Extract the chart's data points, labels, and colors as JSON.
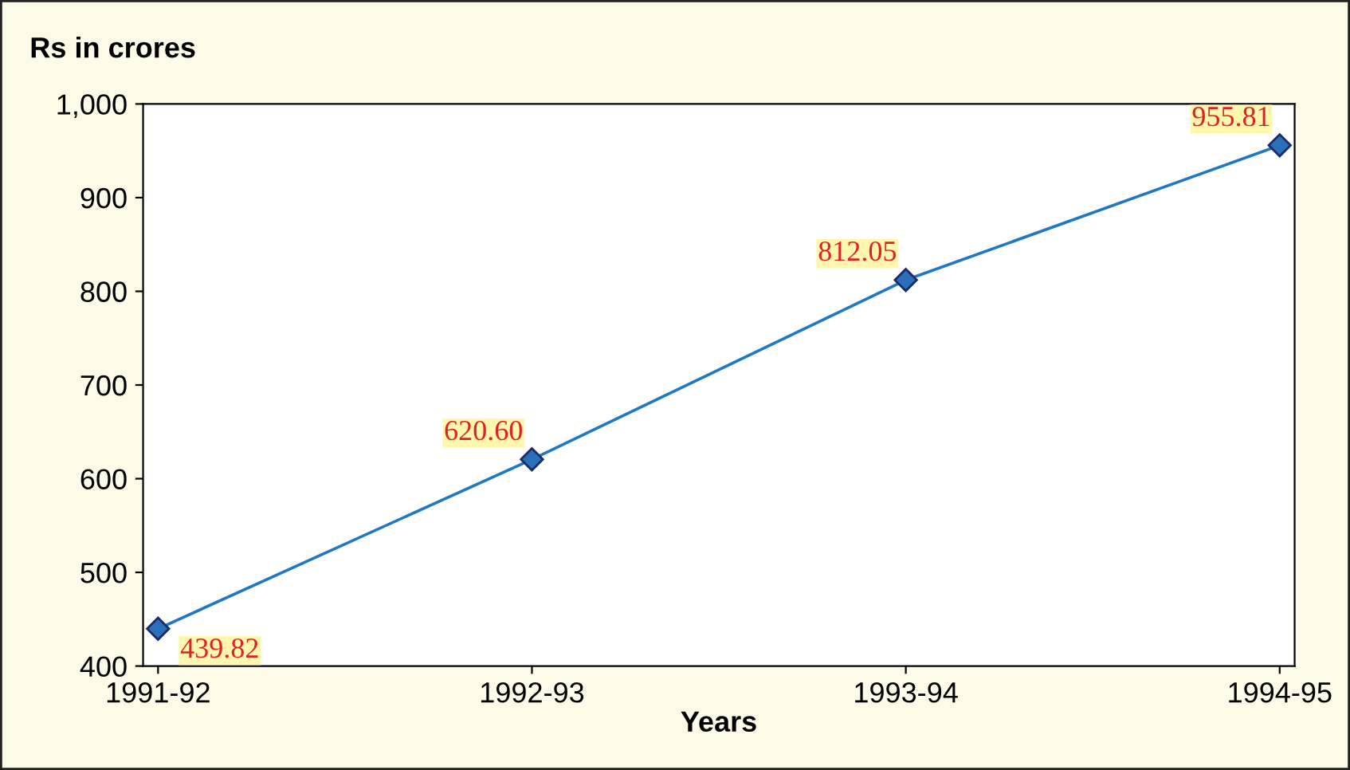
{
  "chart_data": {
    "type": "line",
    "ylabel": "Rs in crores",
    "xlabel": "Years",
    "categories": [
      "1991-92",
      "1992-93",
      "1993-94",
      "1994-95"
    ],
    "series": [
      {
        "color": "#1f78c1",
        "values": [
          439.82,
          620.6,
          812.05,
          955.81
        ],
        "value_labels": [
          "439.82",
          "620.60",
          "812.05",
          "955.81"
        ]
      }
    ],
    "ylim": [
      400,
      1000
    ],
    "yticks": [
      400,
      500,
      600,
      700,
      800,
      900,
      {
        "value": 1000,
        "label": "1,000"
      }
    ],
    "marker": "diamond",
    "grid": false,
    "legend": false
  }
}
